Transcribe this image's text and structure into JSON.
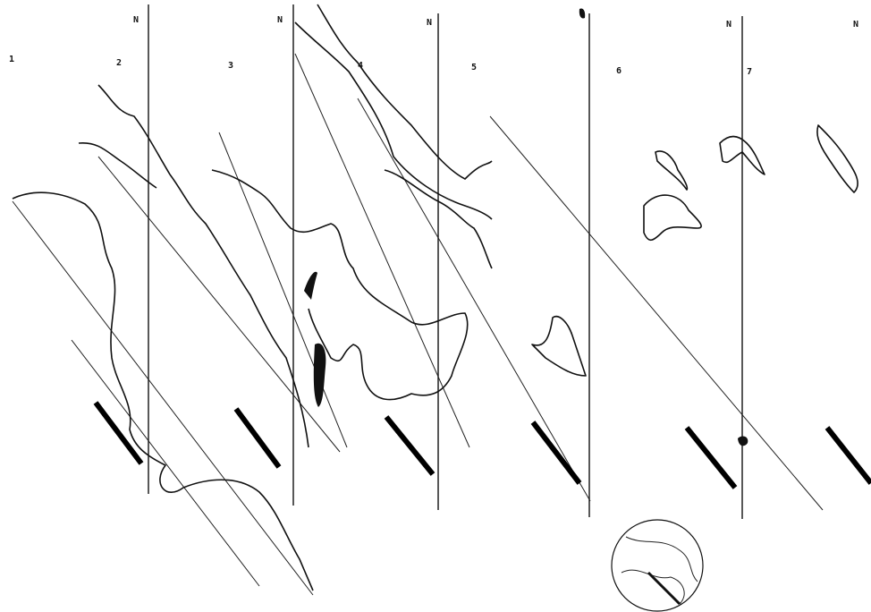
{
  "panel_labels": [
    "1",
    "2",
    "3",
    "4",
    "5",
    "6",
    "7"
  ],
  "north_labels": [
    "N",
    "N",
    "N",
    "N",
    "N"
  ]
}
